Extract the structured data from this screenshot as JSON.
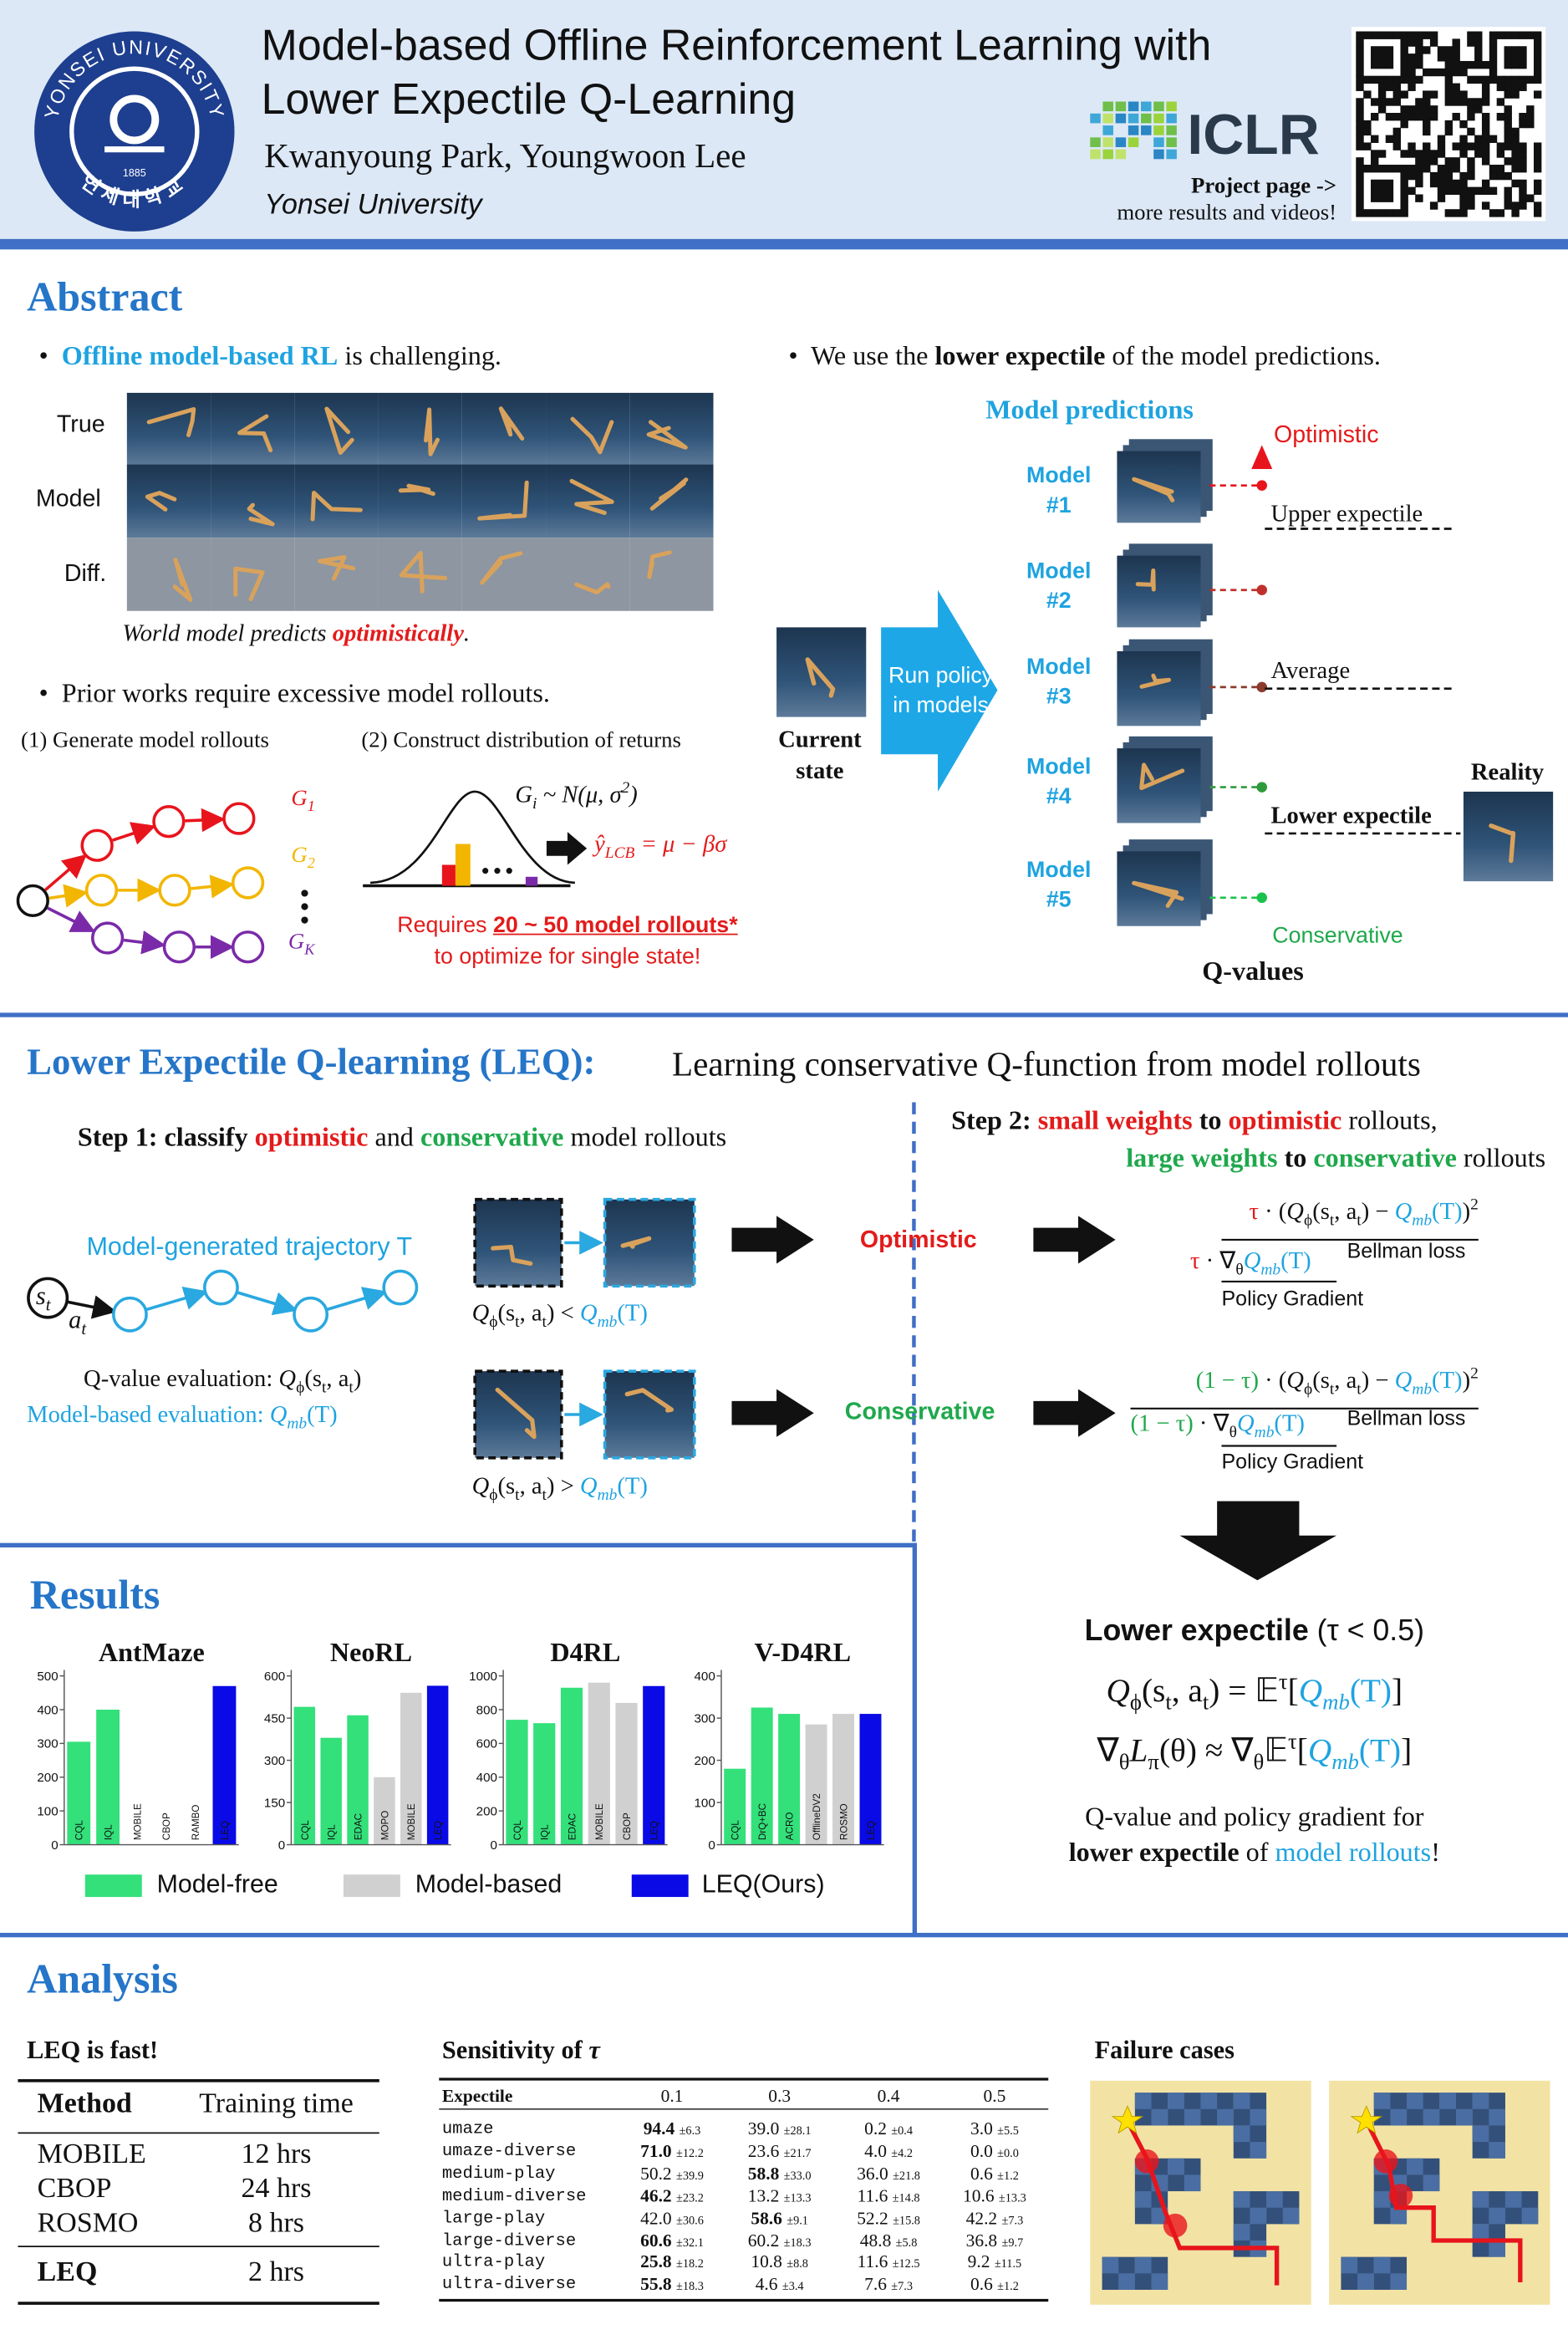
{
  "header": {
    "logo_text": "YONSEI UNIVERSITY",
    "logo_korean": "연세대학교",
    "logo_year": "1885",
    "title": [
      "Model-based Offline Reinforcement Learning with",
      "Lower Expectile Q-Learning"
    ],
    "authors": "Kwanyoung Park, Youngwoon Lee",
    "affiliation": "Yonsei University",
    "venue": "ICLR",
    "project_page": "Project page ->",
    "project_note": "more results and videos!"
  },
  "abstract": {
    "title": "Abstract",
    "point1": [
      "Offline model-based RL",
      " is challenging."
    ],
    "rows": [
      "True",
      "Model",
      "Diff."
    ],
    "caption": [
      "World model predicts ",
      "optimistically",
      "."
    ],
    "point2": "Prior works require excessive model rollouts.",
    "step1": "(1) Generate model rollouts",
    "step2": "(2) Construct distribution of returns",
    "returns": [
      [
        "G",
        "1"
      ],
      [
        "G",
        "2"
      ],
      [
        "G",
        "K"
      ]
    ],
    "dist": [
      "G",
      "i",
      " ~ N(μ, σ",
      "2",
      ")"
    ],
    "lcb": [
      "ŷ",
      "LCB",
      " = μ − βσ"
    ],
    "requires": [
      "Requires ",
      "20 ~ 50 model rollouts*"
    ],
    "requires2": "to optimize for single state!",
    "point3": [
      "We use the ",
      "lower expectile",
      " of the model predictions."
    ],
    "predictions_title": "Model predictions",
    "models": [
      "Model #1",
      "Model #2",
      "Model #3",
      "Model #4",
      "Model #5"
    ],
    "run_policy": "Run policy in models",
    "current_state": "Current state",
    "levels": {
      "optimistic": "Optimistic",
      "upper": "Upper expectile",
      "average": "Average",
      "lower": "Lower expectile",
      "conservative": "Conservative"
    },
    "reality": "Reality",
    "q_values": "Q-values"
  },
  "leq": {
    "title": "Lower Expectile Q-learning (LEQ):",
    "subtitle": "Learning conservative Q-function from model rollouts",
    "step1": [
      "Step 1:",
      " classify ",
      "optimistic",
      " and ",
      "conservative",
      " model rollouts"
    ],
    "step2a": [
      "Step 2:",
      " small weights",
      " to ",
      "optimistic",
      " rollouts,"
    ],
    "step2b": [
      "large weights",
      " to ",
      "conservative",
      " rollouts"
    ],
    "trajectory": "Model-generated trajectory T",
    "state": [
      "s",
      "t"
    ],
    "action": [
      "a",
      "t"
    ],
    "q_eval": [
      "Q-value evaluation: ",
      "Q",
      "ϕ",
      "(s",
      "t",
      ", a",
      "t",
      ")"
    ],
    "mb_eval": [
      "Model-based evaluation: ",
      "Q",
      "mb",
      "(T)"
    ],
    "cmp_opt": [
      "Q",
      "ϕ",
      "(s",
      "t",
      ", a",
      "t",
      ") < ",
      "Q",
      "mb",
      "(T)"
    ],
    "cmp_cons": [
      "Q",
      "ϕ",
      "(s",
      "t",
      ", a",
      "t",
      ") > ",
      "Q",
      "mb",
      "(T)"
    ],
    "optimistic": "Optimistic",
    "conservative": "Conservative",
    "opt_loss": [
      "τ",
      " · (",
      "Q",
      "ϕ",
      "(s",
      "t",
      ", a",
      "t",
      ") − ",
      "Q",
      "mb",
      "(T)",
      ")",
      "2"
    ],
    "opt_grad": [
      "τ",
      " · ∇",
      "θ",
      "Q",
      "mb",
      "(T)"
    ],
    "cons_loss": [
      "(1 − τ)",
      " · (",
      "Q",
      "ϕ",
      "(s",
      "t",
      ", a",
      "t",
      ") − ",
      "Q",
      "mb",
      "(T)",
      ")",
      "2"
    ],
    "cons_grad": [
      "(1 − τ)",
      " · ∇",
      "θ",
      "Q",
      "mb",
      "(T)"
    ],
    "bellman": "Bellman loss",
    "policy_gradient": "Policy Gradient",
    "expectile_title": [
      "Lower expectile",
      " (τ < 0.5)"
    ],
    "eq1": [
      "Q",
      "ϕ",
      "(s",
      "t",
      ", a",
      "t",
      ") = 𝔼",
      "τ",
      "[",
      "Q",
      "mb",
      "(T)",
      "]"
    ],
    "eq2": [
      "∇",
      "θ",
      "L",
      "π",
      "(θ) ≈ ∇",
      "θ",
      "𝔼",
      "τ",
      "[",
      "Q",
      "mb",
      "(T)",
      "]"
    ],
    "summary1": "Q-value and policy gradient for",
    "summary2": [
      "lower expectile",
      " of ",
      "model rollouts",
      "!"
    ]
  },
  "results": {
    "title": "Results",
    "legend": [
      {
        "name": "Model-free",
        "color": "#33e07a"
      },
      {
        "name": "Model-based",
        "color": "#d0d0d0"
      },
      {
        "name": "LEQ(Ours)",
        "color": "#0a0ae6"
      }
    ]
  },
  "chart_data": [
    {
      "type": "bar",
      "title": "AntMaze",
      "categories": [
        "CQL",
        "IQL",
        "MOBILE",
        "CBOP",
        "RAMBO",
        "LEQ"
      ],
      "values": [
        305,
        400,
        0,
        0,
        0,
        470
      ],
      "colors": [
        "#33e07a",
        "#33e07a",
        "#d0d0d0",
        "#d0d0d0",
        "#d0d0d0",
        "#0a0ae6"
      ],
      "ylim": [
        0,
        500
      ],
      "yticks": [
        0,
        100,
        200,
        300,
        400,
        500
      ]
    },
    {
      "type": "bar",
      "title": "NeoRL",
      "categories": [
        "CQL",
        "IQL",
        "EDAC",
        "MOPO",
        "MOBILE",
        "LEQ"
      ],
      "values": [
        490,
        380,
        460,
        240,
        540,
        565
      ],
      "colors": [
        "#33e07a",
        "#33e07a",
        "#33e07a",
        "#d0d0d0",
        "#d0d0d0",
        "#0a0ae6"
      ],
      "ylim": [
        0,
        600
      ],
      "yticks": [
        0,
        150,
        300,
        450,
        600
      ]
    },
    {
      "type": "bar",
      "title": "D4RL",
      "categories": [
        "CQL",
        "IQL",
        "EDAC",
        "MOBILE",
        "CBOP",
        "LEQ"
      ],
      "values": [
        740,
        720,
        930,
        960,
        840,
        940
      ],
      "colors": [
        "#33e07a",
        "#33e07a",
        "#33e07a",
        "#d0d0d0",
        "#d0d0d0",
        "#0a0ae6"
      ],
      "ylim": [
        0,
        1000
      ],
      "yticks": [
        0,
        200,
        400,
        600,
        800,
        1000
      ]
    },
    {
      "type": "bar",
      "title": "V-D4RL",
      "categories": [
        "CQL",
        "DrQ+BC",
        "ACRO",
        "OfflineDV2",
        "ROSMO",
        "LEQ"
      ],
      "values": [
        180,
        325,
        310,
        285,
        310,
        310
      ],
      "colors": [
        "#33e07a",
        "#33e07a",
        "#33e07a",
        "#d0d0d0",
        "#d0d0d0",
        "#0a0ae6"
      ],
      "ylim": [
        0,
        400
      ],
      "yticks": [
        0,
        100,
        200,
        300,
        400
      ]
    }
  ],
  "analysis": {
    "title": "Analysis",
    "speed": {
      "title": "LEQ is fast!",
      "header": [
        "Method",
        "Training time"
      ],
      "rows": [
        [
          "MOBILE",
          "12 hrs"
        ],
        [
          "CBOP",
          "24 hrs"
        ],
        [
          "ROSMO",
          "8 hrs"
        ],
        [
          "LEQ",
          "2 hrs"
        ]
      ]
    },
    "sensitivity": {
      "title": [
        "Sensitivity of ",
        "τ"
      ],
      "header": [
        "Expectile",
        "0.1",
        "0.3",
        "0.4",
        "0.5"
      ],
      "rows": [
        {
          "task": "umaze",
          "cells": [
            [
              "94.4",
              "±6.3"
            ],
            [
              "39.0",
              "±28.1"
            ],
            [
              "0.2",
              "±0.4"
            ],
            [
              "3.0",
              "±5.5"
            ]
          ]
        },
        {
          "task": "umaze-diverse",
          "cells": [
            [
              "71.0",
              "±12.2"
            ],
            [
              "23.6",
              "±21.7"
            ],
            [
              "4.0",
              "±4.2"
            ],
            [
              "0.0",
              "±0.0"
            ]
          ]
        },
        {
          "task": "medium-play",
          "cells": [
            [
              "50.2",
              "±39.9"
            ],
            [
              "58.8",
              "±33.0"
            ],
            [
              "36.0",
              "±21.8"
            ],
            [
              "0.6",
              "±1.2"
            ]
          ]
        },
        {
          "task": "medium-diverse",
          "cells": [
            [
              "46.2",
              "±23.2"
            ],
            [
              "13.2",
              "±13.3"
            ],
            [
              "11.6",
              "±14.8"
            ],
            [
              "10.6",
              "±13.3"
            ]
          ]
        },
        {
          "task": "large-play",
          "cells": [
            [
              "42.0",
              "±30.6"
            ],
            [
              "58.6",
              "±9.1"
            ],
            [
              "52.2",
              "±15.8"
            ],
            [
              "42.2",
              "±7.3"
            ]
          ]
        },
        {
          "task": "large-diverse",
          "cells": [
            [
              "60.6",
              "±32.1"
            ],
            [
              "60.2",
              "±18.3"
            ],
            [
              "48.8",
              "±5.8"
            ],
            [
              "36.8",
              "±9.7"
            ]
          ]
        },
        {
          "task": "ultra-play",
          "cells": [
            [
              "25.8",
              "±18.2"
            ],
            [
              "10.8",
              "±8.8"
            ],
            [
              "11.6",
              "±12.5"
            ],
            [
              "9.2",
              "±11.5"
            ]
          ]
        },
        {
          "task": "ultra-diverse",
          "cells": [
            [
              "55.8",
              "±18.3"
            ],
            [
              "4.6",
              "±3.4"
            ],
            [
              "7.6",
              "±7.3"
            ],
            [
              "0.6",
              "±1.2"
            ]
          ]
        }
      ]
    },
    "failure": {
      "title": "Failure cases"
    }
  }
}
